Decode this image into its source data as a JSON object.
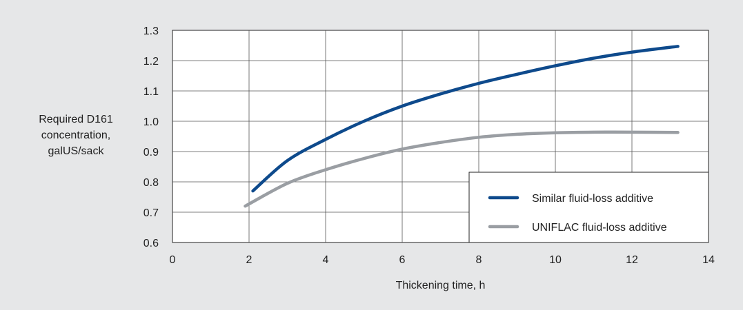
{
  "chart_data": {
    "type": "line",
    "title": "",
    "xlabel": "Thickening time, h",
    "ylabel_lines": [
      "Required D161",
      "concentration,",
      "galUS/sack"
    ],
    "xlim": [
      0,
      14
    ],
    "ylim": [
      0.6,
      1.3
    ],
    "x_ticks": [
      0,
      2,
      4,
      6,
      8,
      10,
      12,
      14
    ],
    "y_ticks": [
      0.6,
      0.7,
      0.8,
      0.9,
      1.0,
      1.1,
      1.2,
      1.3
    ],
    "y_tick_labels": [
      "0.6",
      "0.7",
      "0.8",
      "0.9",
      "1.0",
      "1.1",
      "1.2",
      "1.3"
    ],
    "grid": true,
    "legend_position": "bottom-right",
    "series": [
      {
        "name": "Similar fluid-loss additive",
        "color": "#0e4a8c",
        "x": [
          2.1,
          3.0,
          4.0,
          5.0,
          6.0,
          7.0,
          8.0,
          9.0,
          10.0,
          11.0,
          12.0,
          13.2
        ],
        "y": [
          0.77,
          0.87,
          0.94,
          1.0,
          1.05,
          1.09,
          1.125,
          1.155,
          1.183,
          1.208,
          1.228,
          1.247
        ]
      },
      {
        "name": "UNIFLAC fluid-loss additive",
        "color": "#9a9ea3",
        "x": [
          1.9,
          3.0,
          4.0,
          5.0,
          6.0,
          7.0,
          8.0,
          9.0,
          10.0,
          11.0,
          12.0,
          13.2
        ],
        "y": [
          0.72,
          0.795,
          0.84,
          0.877,
          0.908,
          0.93,
          0.947,
          0.957,
          0.962,
          0.964,
          0.964,
          0.963
        ]
      }
    ]
  }
}
